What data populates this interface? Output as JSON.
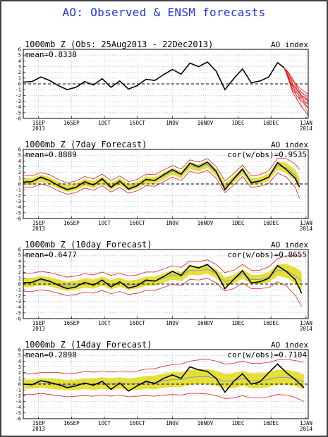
{
  "title": "AO: Observed & ENSM forecasts",
  "chart_data": [
    {
      "type": "line",
      "title": "1000mb Z (Obs: 25Aug2013 - 22Dec2013)",
      "right_label": "AO index",
      "stat_label": "",
      "mean_label": "mean=0.8338",
      "ylim": [
        -6,
        6
      ],
      "yticks": [
        "6",
        "5",
        "4",
        "3",
        "2",
        "1",
        "0",
        "-1",
        "-2",
        "-3",
        "-4",
        "-5",
        "-6"
      ],
      "x_ticks": [
        {
          "day": 7,
          "label": "1SEP",
          "label2": "2013"
        },
        {
          "day": 22,
          "label": "16SEP",
          "label2": ""
        },
        {
          "day": 37,
          "label": "1OCT",
          "label2": ""
        },
        {
          "day": 52,
          "label": "16OCT",
          "label2": ""
        },
        {
          "day": 68,
          "label": "1NOV",
          "label2": ""
        },
        {
          "day": 83,
          "label": "16NOV",
          "label2": ""
        },
        {
          "day": 98,
          "label": "1DEC",
          "label2": ""
        },
        {
          "day": 113,
          "label": "16DEC",
          "label2": ""
        },
        {
          "day": 129,
          "label": "1JAN",
          "label2": "2014"
        }
      ],
      "x_range_days": [
        0,
        130
      ],
      "observed": {
        "days": [
          0,
          4,
          8,
          12,
          16,
          20,
          24,
          28,
          32,
          36,
          40,
          44,
          48,
          52,
          56,
          60,
          64,
          68,
          72,
          76,
          80,
          84,
          88,
          92,
          96,
          100,
          104,
          108,
          112,
          116,
          119
        ],
        "values": [
          0.3,
          0.4,
          1.2,
          0.6,
          -0.3,
          -1.0,
          -0.6,
          0.4,
          -0.2,
          0.9,
          -0.6,
          0.5,
          -0.9,
          -0.3,
          0.8,
          0.6,
          1.6,
          2.5,
          1.7,
          3.6,
          3.0,
          3.8,
          2.2,
          -1.0,
          0.9,
          2.6,
          0.2,
          0.5,
          1.2,
          3.7,
          2.8
        ]
      },
      "forecast_members": [
        [
          2.8,
          1.8,
          0.5,
          -0.3,
          -1.0,
          -1.8
        ],
        [
          2.8,
          1.5,
          0.0,
          -1.0,
          -2.0,
          -2.8
        ],
        [
          2.8,
          1.2,
          -0.6,
          -1.6,
          -2.5,
          -3.5
        ],
        [
          2.8,
          0.9,
          -1.1,
          -2.2,
          -3.0,
          -4.2
        ],
        [
          2.8,
          0.7,
          -1.6,
          -2.8,
          -4.0,
          -5.5
        ],
        [
          2.8,
          2.0,
          0.8,
          -0.6,
          -1.5,
          -2.2
        ],
        [
          2.8,
          1.0,
          -0.3,
          -1.2,
          -2.2,
          -3.0
        ]
      ],
      "forecast_days": [
        119,
        121,
        123,
        125,
        127,
        130
      ]
    },
    {
      "type": "line",
      "title": "1000mb Z (7day Forecast)",
      "right_label": "AO index",
      "stat_label": "cor(w/obs)=0.9535",
      "mean_label": "mean=0.8889",
      "ylim": [
        -6,
        6
      ],
      "yticks": [
        "6",
        "5",
        "4",
        "3",
        "2",
        "1",
        "0",
        "-1",
        "-2",
        "-3",
        "-4",
        "-5",
        "-6"
      ],
      "x_ticks": [
        {
          "day": 7,
          "label": "1SEP",
          "label2": "2013"
        },
        {
          "day": 22,
          "label": "16SEP",
          "label2": ""
        },
        {
          "day": 37,
          "label": "1OCT",
          "label2": ""
        },
        {
          "day": 52,
          "label": "16OCT",
          "label2": ""
        },
        {
          "day": 68,
          "label": "1NOV",
          "label2": ""
        },
        {
          "day": 83,
          "label": "16NOV",
          "label2": ""
        },
        {
          "day": 98,
          "label": "1DEC",
          "label2": ""
        },
        {
          "day": 113,
          "label": "16DEC",
          "label2": ""
        },
        {
          "day": 129,
          "label": "1JAN",
          "label2": "2014"
        }
      ],
      "x_range_days": [
        0,
        130
      ],
      "observed": {
        "days": [
          0,
          4,
          8,
          12,
          16,
          20,
          24,
          28,
          32,
          36,
          40,
          44,
          48,
          52,
          56,
          60,
          64,
          68,
          72,
          76,
          80,
          84,
          88,
          92,
          96,
          100,
          104,
          108,
          112,
          116,
          120,
          124,
          126
        ],
        "values": [
          0.3,
          0.4,
          1.2,
          0.6,
          -0.3,
          -1.0,
          -0.6,
          0.4,
          -0.2,
          0.9,
          -0.6,
          0.5,
          -0.9,
          -0.3,
          0.8,
          0.6,
          1.6,
          2.5,
          1.7,
          3.6,
          3.0,
          3.8,
          2.2,
          -1.0,
          0.9,
          2.6,
          0.2,
          0.5,
          1.2,
          3.7,
          2.5,
          1.0,
          -0.5
        ]
      },
      "ensemble_mean": [
        0.5,
        0.4,
        1.0,
        0.6,
        -0.2,
        -0.8,
        -0.5,
        0.3,
        -0.1,
        0.7,
        -0.4,
        0.4,
        -0.6,
        -0.2,
        0.7,
        0.6,
        1.4,
        2.2,
        1.6,
        3.2,
        2.8,
        3.4,
        2.0,
        -0.5,
        0.8,
        2.3,
        0.4,
        0.6,
        1.2,
        3.2,
        2.8,
        1.5,
        0.0
      ],
      "band_half_width": [
        0.6,
        0.6,
        0.6,
        0.6,
        0.6,
        0.6,
        0.6,
        0.6,
        0.6,
        0.6,
        0.6,
        0.6,
        0.6,
        0.6,
        0.6,
        0.6,
        0.6,
        0.6,
        0.6,
        0.6,
        0.6,
        0.6,
        0.6,
        0.6,
        0.6,
        0.6,
        0.6,
        0.6,
        0.6,
        0.7,
        0.9,
        1.0,
        1.1
      ],
      "spread_half_width": [
        1.0,
        1.0,
        1.0,
        1.0,
        1.0,
        1.0,
        1.0,
        1.0,
        1.0,
        1.0,
        1.0,
        1.0,
        1.0,
        1.0,
        1.0,
        1.0,
        1.0,
        1.0,
        1.0,
        1.0,
        1.0,
        1.0,
        1.0,
        1.0,
        1.0,
        1.0,
        1.0,
        1.0,
        1.1,
        1.3,
        1.6,
        2.0,
        2.5
      ]
    },
    {
      "type": "line",
      "title": "1000mb Z (10day Forecast)",
      "right_label": "AO index",
      "stat_label": "cor(w/obs)=0.8655",
      "mean_label": "mean=0.6477",
      "ylim": [
        -6,
        6
      ],
      "yticks": [
        "6",
        "5",
        "4",
        "3",
        "2",
        "1",
        "0",
        "-1",
        "-2",
        "-3",
        "-4",
        "-5",
        "-6"
      ],
      "x_ticks": [
        {
          "day": 7,
          "label": "1SEP",
          "label2": "2013"
        },
        {
          "day": 22,
          "label": "16SEP",
          "label2": ""
        },
        {
          "day": 37,
          "label": "1OCT",
          "label2": ""
        },
        {
          "day": 52,
          "label": "16OCT",
          "label2": ""
        },
        {
          "day": 68,
          "label": "1NOV",
          "label2": ""
        },
        {
          "day": 83,
          "label": "16NOV",
          "label2": ""
        },
        {
          "day": 98,
          "label": "1DEC",
          "label2": ""
        },
        {
          "day": 113,
          "label": "16DEC",
          "label2": ""
        },
        {
          "day": 129,
          "label": "1JAN",
          "label2": "2014"
        }
      ],
      "x_range_days": [
        0,
        130
      ],
      "observed": {
        "days": [
          0,
          4,
          8,
          12,
          16,
          20,
          24,
          28,
          32,
          36,
          40,
          44,
          48,
          52,
          56,
          60,
          64,
          68,
          72,
          76,
          80,
          84,
          88,
          92,
          96,
          100,
          104,
          108,
          112,
          116,
          120,
          124,
          127
        ],
        "values": [
          0.2,
          0.3,
          0.9,
          0.5,
          -0.2,
          -0.8,
          -0.5,
          0.3,
          -0.2,
          0.7,
          -0.5,
          0.4,
          -0.7,
          -0.3,
          0.7,
          0.5,
          1.3,
          2.2,
          1.5,
          3.2,
          2.8,
          3.4,
          2.0,
          -0.8,
          0.8,
          2.3,
          0.2,
          0.4,
          1.0,
          3.2,
          2.2,
          0.8,
          -1.6
        ]
      },
      "ensemble_mean": [
        0.3,
        0.3,
        0.6,
        0.4,
        0.0,
        -0.4,
        -0.2,
        0.2,
        0.0,
        0.5,
        -0.1,
        0.3,
        -0.2,
        0.0,
        0.5,
        0.5,
        1.0,
        1.6,
        1.3,
        2.4,
        2.3,
        2.6,
        1.8,
        0.4,
        0.8,
        1.8,
        0.8,
        0.8,
        1.2,
        2.4,
        2.3,
        1.5,
        0.5
      ],
      "band_half_width": [
        0.8,
        0.8,
        0.8,
        0.8,
        0.8,
        0.8,
        0.8,
        0.8,
        0.8,
        0.8,
        0.8,
        0.8,
        0.8,
        0.8,
        0.8,
        0.8,
        0.8,
        0.8,
        0.8,
        0.8,
        0.8,
        0.8,
        0.8,
        0.8,
        0.8,
        0.8,
        0.8,
        0.8,
        0.9,
        1.0,
        1.2,
        1.4,
        1.6
      ],
      "spread_half_width": [
        1.6,
        1.6,
        1.6,
        1.6,
        1.6,
        1.6,
        1.6,
        1.6,
        1.6,
        1.6,
        1.6,
        1.6,
        1.6,
        1.6,
        1.6,
        1.6,
        1.6,
        1.6,
        1.6,
        1.6,
        1.6,
        1.6,
        1.6,
        1.6,
        1.6,
        1.6,
        1.6,
        1.6,
        1.8,
        2.0,
        2.6,
        3.4,
        4.4
      ]
    },
    {
      "type": "line",
      "title": "1000mb Z (14day Forecast)",
      "right_label": "AO index",
      "stat_label": "cor(w/obs)=0.7104",
      "mean_label": "mean=0.2898",
      "ylim": [
        -6,
        6
      ],
      "yticks": [
        "6",
        "5",
        "4",
        "3",
        "2",
        "1",
        "0",
        "-1",
        "-2",
        "-3",
        "-4",
        "-5",
        "-6"
      ],
      "x_ticks": [
        {
          "day": 7,
          "label": "1SEP",
          "label2": "2013"
        },
        {
          "day": 22,
          "label": "16SEP",
          "label2": ""
        },
        {
          "day": 37,
          "label": "1OCT",
          "label2": ""
        },
        {
          "day": 52,
          "label": "16OCT",
          "label2": ""
        },
        {
          "day": 68,
          "label": "1NOV",
          "label2": ""
        },
        {
          "day": 83,
          "label": "16NOV",
          "label2": ""
        },
        {
          "day": 98,
          "label": "1DEC",
          "label2": ""
        },
        {
          "day": 113,
          "label": "16DEC",
          "label2": ""
        },
        {
          "day": 129,
          "label": "1JAN",
          "label2": "2014"
        }
      ],
      "x_range_days": [
        0,
        130
      ],
      "observed": {
        "days": [
          0,
          4,
          8,
          12,
          16,
          20,
          24,
          28,
          32,
          36,
          40,
          44,
          48,
          52,
          56,
          60,
          64,
          68,
          72,
          76,
          80,
          84,
          88,
          92,
          96,
          100,
          104,
          108,
          112,
          116,
          120,
          124,
          128
        ],
        "values": [
          0.0,
          -0.1,
          0.6,
          0.3,
          -0.1,
          -0.6,
          -0.3,
          0.2,
          -0.2,
          0.5,
          -0.9,
          0.2,
          -1.2,
          -0.3,
          0.5,
          0.1,
          1.0,
          1.6,
          1.0,
          3.0,
          2.5,
          2.2,
          1.0,
          -1.4,
          0.5,
          1.8,
          0.0,
          0.4,
          2.0,
          3.5,
          2.0,
          0.8,
          -0.6
        ]
      },
      "ensemble_mean": [
        0.0,
        0.0,
        0.2,
        0.1,
        0.0,
        -0.2,
        -0.1,
        0.1,
        0.0,
        0.2,
        0.0,
        0.2,
        0.0,
        0.1,
        0.3,
        0.3,
        0.6,
        0.8,
        0.8,
        1.2,
        1.3,
        1.3,
        1.0,
        0.5,
        0.6,
        1.0,
        0.6,
        0.6,
        0.8,
        1.2,
        1.2,
        0.9,
        0.4
      ],
      "band_half_width": [
        0.8,
        0.8,
        0.8,
        0.9,
        0.9,
        0.9,
        0.9,
        0.9,
        1.0,
        1.0,
        1.0,
        1.0,
        1.0,
        1.1,
        1.1,
        1.2,
        1.2,
        1.3,
        1.3,
        1.3,
        1.3,
        1.3,
        1.3,
        1.3,
        1.3,
        1.3,
        1.3,
        1.3,
        1.3,
        1.3,
        1.3,
        1.3,
        1.3
      ],
      "spread_half_width": [
        1.8,
        1.8,
        1.8,
        1.9,
        2.0,
        2.0,
        2.0,
        2.1,
        2.1,
        2.1,
        2.1,
        2.1,
        2.2,
        2.2,
        2.3,
        2.4,
        2.5,
        2.6,
        2.7,
        2.8,
        2.9,
        3.0,
        3.0,
        3.0,
        3.0,
        3.0,
        3.0,
        3.0,
        3.0,
        3.0,
        3.1,
        3.2,
        3.4
      ]
    }
  ]
}
